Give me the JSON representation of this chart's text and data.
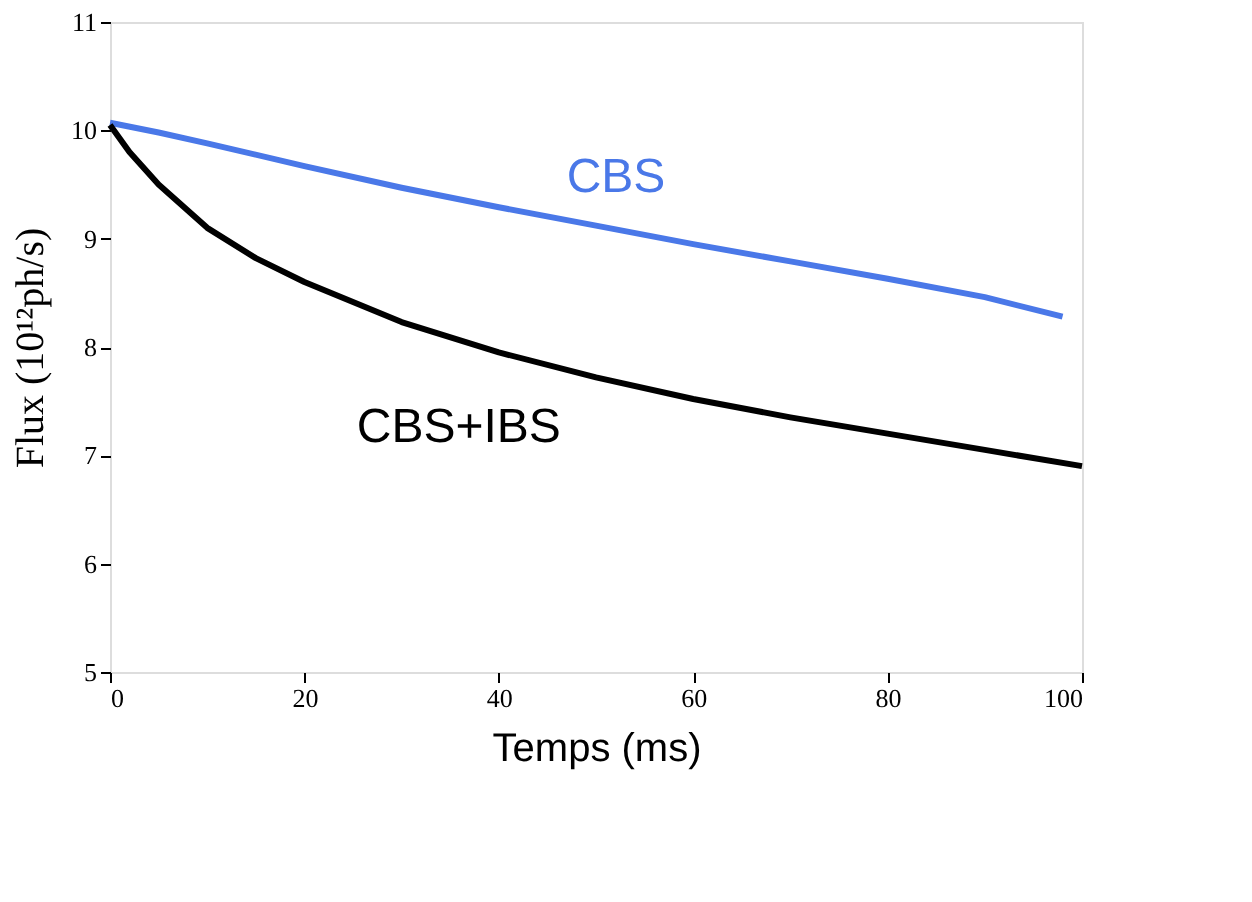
{
  "chart_data": {
    "type": "line",
    "xlabel": "Temps (ms)",
    "ylabel": "Flux (10¹²ph/s)",
    "xlim": [
      0,
      100
    ],
    "ylim": [
      5,
      11
    ],
    "xticks": [
      0,
      20,
      40,
      60,
      80,
      100
    ],
    "yticks": [
      5,
      6,
      7,
      8,
      9,
      10,
      11
    ],
    "grid": false,
    "marker": "none",
    "line_style": "solid",
    "series": [
      {
        "name": "CBS",
        "color": "#4a78e8",
        "x": [
          0,
          5,
          10,
          20,
          30,
          40,
          50,
          60,
          70,
          80,
          90,
          98
        ],
        "values": [
          10.07,
          9.98,
          9.88,
          9.67,
          9.47,
          9.29,
          9.12,
          8.95,
          8.79,
          8.63,
          8.46,
          8.28
        ]
      },
      {
        "name": "CBS+IBS",
        "color": "#000000",
        "x": [
          0,
          2,
          5,
          10,
          15,
          20,
          30,
          40,
          50,
          60,
          70,
          80,
          90,
          100
        ],
        "values": [
          10.05,
          9.8,
          9.5,
          9.1,
          8.82,
          8.6,
          8.23,
          7.95,
          7.72,
          7.52,
          7.35,
          7.2,
          7.05,
          6.9
        ]
      }
    ]
  }
}
